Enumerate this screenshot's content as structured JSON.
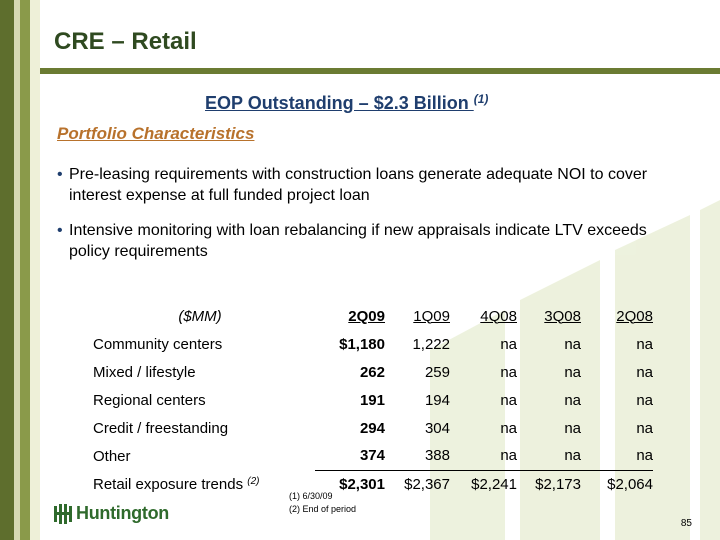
{
  "header": {
    "title": "CRE – Retail"
  },
  "subtitle": {
    "text": "EOP Outstanding – $2.3 Billion ",
    "footnote_ref": "(1)"
  },
  "section": {
    "heading": "Portfolio Characteristics"
  },
  "bullets": [
    "Pre-leasing requirements with construction loans generate adequate NOI to cover interest expense at full funded project loan",
    "Intensive monitoring with loan rebalancing if new appraisals indicate LTV exceeds policy requirements"
  ],
  "table": {
    "unit_label": "($MM)",
    "columns": [
      "2Q09",
      "1Q09",
      "4Q08",
      "3Q08",
      "2Q08"
    ],
    "rows": [
      {
        "label": "Community centers",
        "values": [
          "$1,180",
          "1,222",
          "na",
          "na",
          "na"
        ]
      },
      {
        "label": "Mixed / lifestyle",
        "values": [
          "262",
          "259",
          "na",
          "na",
          "na"
        ]
      },
      {
        "label": "Regional centers",
        "values": [
          "191",
          "194",
          "na",
          "na",
          "na"
        ]
      },
      {
        "label": "Credit / freestanding",
        "values": [
          "294",
          "304",
          "na",
          "na",
          "na"
        ]
      },
      {
        "label": "Other",
        "values": [
          "374",
          "388",
          "na",
          "na",
          "na"
        ]
      }
    ],
    "total": {
      "label": "Retail exposure trends ",
      "footnote_ref": "(2)",
      "values": [
        "$2,301",
        "$2,367",
        "$2,241",
        "$2,173",
        "$2,064"
      ]
    }
  },
  "footnotes": [
    "(1)  6/30/09",
    "(2)  End of period"
  ],
  "logo": {
    "text": "Huntington",
    "icon": "huntington-logo-icon"
  },
  "page_number": "85",
  "colors": {
    "title": "#2f4a20",
    "subtitle": "#1f3e6e",
    "section": "#b8722c",
    "accent_bar": "#6b7b32"
  }
}
